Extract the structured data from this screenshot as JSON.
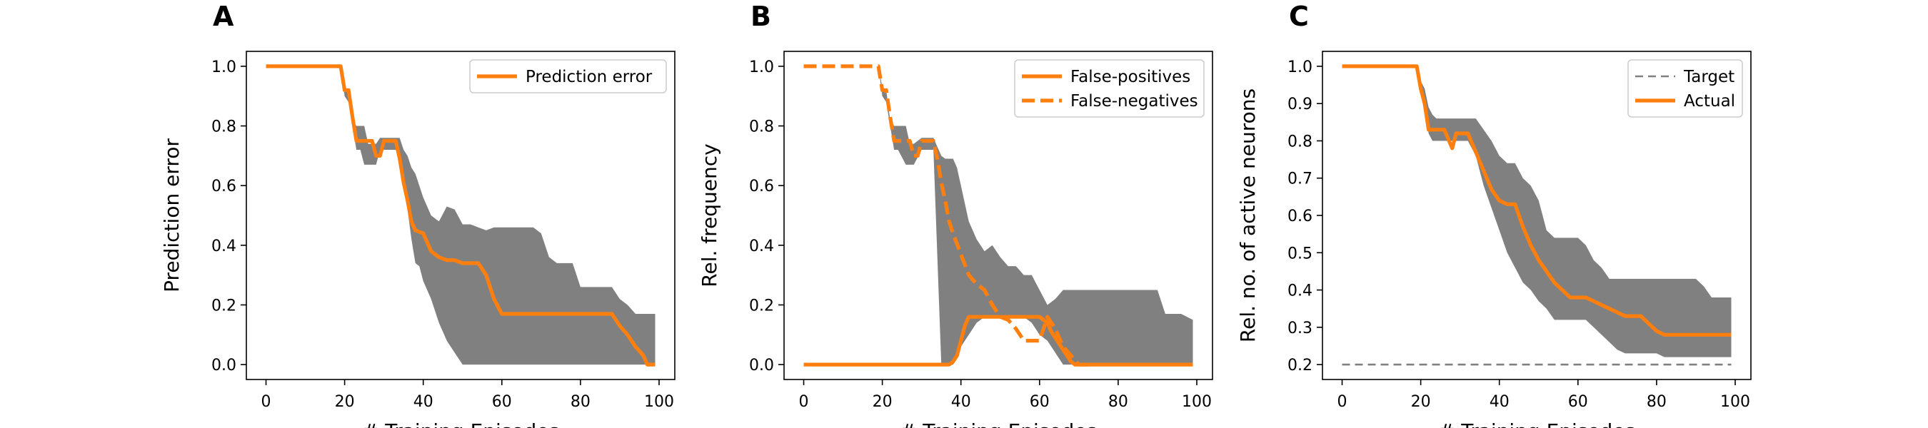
{
  "chart_data": [
    {
      "panel": "A",
      "type": "line",
      "xlabel": "# Training Episodes",
      "ylabel": "Prediction error",
      "xlim": [
        -5,
        104
      ],
      "ylim": [
        -0.05,
        1.05
      ],
      "xticks": [
        0,
        20,
        40,
        60,
        80,
        100
      ],
      "yticks": [
        "0.0",
        "0.2",
        "0.4",
        "0.6",
        "0.8",
        "1.0"
      ],
      "legend_position": "top-right",
      "band_color": "#808080",
      "band": {
        "x": [
          0,
          19,
          20,
          21,
          22,
          23,
          24,
          25,
          26,
          27,
          28,
          29,
          30,
          31,
          33,
          34,
          35,
          36,
          37,
          38,
          39,
          40,
          42,
          44,
          46,
          48,
          50,
          52,
          54,
          56,
          58,
          60,
          62,
          66,
          68,
          70,
          72,
          74,
          76,
          78,
          80,
          82,
          84,
          86,
          88,
          90,
          92,
          94,
          96,
          99
        ],
        "lower": [
          1.0,
          1.0,
          0.9,
          0.88,
          0.8,
          0.72,
          0.72,
          0.67,
          0.67,
          0.67,
          0.67,
          0.72,
          0.72,
          0.72,
          0.72,
          0.68,
          0.62,
          0.52,
          0.42,
          0.34,
          0.33,
          0.28,
          0.22,
          0.14,
          0.08,
          0.04,
          0.0,
          0.0,
          0.0,
          0.0,
          0.0,
          0.0,
          0.0,
          0.0,
          0.0,
          0.0,
          0.0,
          0.0,
          0.0,
          0.0,
          0.0,
          0.0,
          0.0,
          0.0,
          0.0,
          0.0,
          0.0,
          0.0,
          0.0,
          0.0
        ],
        "upper": [
          1.0,
          1.0,
          0.93,
          0.92,
          0.82,
          0.8,
          0.8,
          0.8,
          0.74,
          0.74,
          0.74,
          0.76,
          0.76,
          0.76,
          0.76,
          0.76,
          0.72,
          0.7,
          0.66,
          0.64,
          0.6,
          0.56,
          0.5,
          0.48,
          0.53,
          0.52,
          0.47,
          0.47,
          0.46,
          0.45,
          0.46,
          0.46,
          0.46,
          0.46,
          0.46,
          0.44,
          0.36,
          0.34,
          0.34,
          0.34,
          0.26,
          0.26,
          0.26,
          0.26,
          0.26,
          0.22,
          0.2,
          0.17,
          0.17,
          0.17
        ]
      },
      "series": [
        {
          "name": "Prediction error",
          "color": "#ff7f0e",
          "style": "solid",
          "x": [
            0,
            19,
            20,
            21,
            22,
            23,
            24,
            25,
            26,
            27,
            28,
            29,
            30,
            31,
            33,
            34,
            35,
            36,
            37,
            38,
            40,
            42,
            44,
            46,
            48,
            50,
            52,
            54,
            56,
            58,
            60,
            62,
            66,
            70,
            74,
            80,
            84,
            88,
            90,
            92,
            94,
            96,
            97,
            98,
            99
          ],
          "y": [
            1.0,
            1.0,
            0.92,
            0.92,
            0.83,
            0.75,
            0.75,
            0.75,
            0.75,
            0.75,
            0.7,
            0.7,
            0.75,
            0.75,
            0.75,
            0.69,
            0.61,
            0.55,
            0.48,
            0.45,
            0.44,
            0.38,
            0.36,
            0.35,
            0.35,
            0.34,
            0.34,
            0.34,
            0.3,
            0.22,
            0.17,
            0.17,
            0.17,
            0.17,
            0.17,
            0.17,
            0.17,
            0.17,
            0.13,
            0.1,
            0.06,
            0.03,
            0.0,
            0.0,
            0.0
          ]
        }
      ]
    },
    {
      "panel": "B",
      "type": "line",
      "xlabel": "# Training Episodes",
      "ylabel": "Rel. frequency",
      "xlim": [
        -5,
        104
      ],
      "ylim": [
        -0.05,
        1.05
      ],
      "xticks": [
        0,
        20,
        40,
        60,
        80,
        100
      ],
      "yticks": [
        "0.0",
        "0.2",
        "0.4",
        "0.6",
        "0.8",
        "1.0"
      ],
      "legend_position": "top-right",
      "band_color": "#808080",
      "band": {
        "x": [
          19,
          20,
          21,
          22,
          23,
          24,
          26,
          27,
          28,
          30,
          31,
          33,
          35,
          36,
          37,
          38,
          39,
          40,
          42,
          44,
          46,
          48,
          50,
          52,
          54,
          56,
          58,
          60,
          62,
          64,
          66,
          68,
          70,
          72,
          74,
          76,
          78,
          80,
          82,
          84,
          86,
          88,
          90,
          92,
          94,
          96,
          99
        ],
        "lower": [
          1.0,
          0.9,
          0.88,
          0.8,
          0.72,
          0.72,
          0.67,
          0.67,
          0.67,
          0.72,
          0.72,
          0.72,
          0.0,
          0.0,
          0.0,
          0.0,
          0.02,
          0.06,
          0.1,
          0.14,
          0.16,
          0.16,
          0.16,
          0.16,
          0.16,
          0.16,
          0.14,
          0.1,
          0.08,
          0.04,
          0.0,
          0.0,
          0.0,
          0.0,
          0.0,
          0.0,
          0.0,
          0.0,
          0.0,
          0.0,
          0.0,
          0.0,
          0.0,
          0.0,
          0.0,
          0.0,
          0.0
        ],
        "upper": [
          1.0,
          0.93,
          0.92,
          0.82,
          0.8,
          0.8,
          0.8,
          0.74,
          0.74,
          0.76,
          0.76,
          0.76,
          0.7,
          0.69,
          0.69,
          0.69,
          0.66,
          0.6,
          0.48,
          0.42,
          0.38,
          0.4,
          0.36,
          0.33,
          0.33,
          0.3,
          0.3,
          0.25,
          0.2,
          0.22,
          0.25,
          0.25,
          0.25,
          0.25,
          0.25,
          0.25,
          0.25,
          0.25,
          0.25,
          0.25,
          0.25,
          0.25,
          0.25,
          0.17,
          0.17,
          0.17,
          0.15
        ]
      },
      "series": [
        {
          "name": "False-positives",
          "color": "#ff7f0e",
          "style": "solid",
          "x": [
            0,
            37,
            38,
            39,
            40,
            41,
            42,
            44,
            46,
            48,
            50,
            52,
            54,
            56,
            58,
            60,
            62,
            63,
            64,
            65,
            66,
            67,
            68,
            69,
            70,
            75,
            80,
            90,
            99
          ],
          "y": [
            0.0,
            0.0,
            0.01,
            0.03,
            0.08,
            0.13,
            0.16,
            0.16,
            0.16,
            0.16,
            0.16,
            0.16,
            0.16,
            0.16,
            0.16,
            0.16,
            0.14,
            0.11,
            0.09,
            0.07,
            0.05,
            0.03,
            0.01,
            0.0,
            0.0,
            0.0,
            0.0,
            0.0,
            0.0
          ]
        },
        {
          "name": "False-negatives",
          "color": "#ff7f0e",
          "style": "dashed",
          "x": [
            0,
            19,
            20,
            21,
            22,
            23,
            24,
            25,
            26,
            27,
            28,
            29,
            30,
            31,
            33,
            34,
            35,
            36,
            37,
            38,
            40,
            42,
            44,
            46,
            48,
            50,
            52,
            54,
            56,
            58,
            60,
            62,
            64,
            66,
            68,
            70,
            72
          ],
          "y": [
            1.0,
            1.0,
            0.92,
            0.92,
            0.83,
            0.75,
            0.75,
            0.75,
            0.75,
            0.75,
            0.7,
            0.7,
            0.75,
            0.75,
            0.75,
            0.69,
            0.61,
            0.55,
            0.48,
            0.44,
            0.37,
            0.3,
            0.27,
            0.25,
            0.2,
            0.16,
            0.15,
            0.12,
            0.08,
            0.08,
            0.08,
            0.16,
            0.12,
            0.06,
            0.03,
            0.0,
            0.0
          ]
        }
      ]
    },
    {
      "panel": "C",
      "type": "line",
      "xlabel": "# Training Episodes",
      "ylabel": "Rel. no. of active neurons",
      "xlim": [
        -5,
        104
      ],
      "ylim": [
        0.16,
        1.04
      ],
      "xticks": [
        0,
        20,
        40,
        60,
        80,
        100
      ],
      "yticks": [
        "0.2",
        "0.3",
        "0.4",
        "0.5",
        "0.6",
        "0.7",
        "0.8",
        "0.9",
        "1.0"
      ],
      "legend_position": "top-right",
      "band_color": "#808080",
      "band": {
        "x": [
          0,
          19,
          20,
          21,
          22,
          23,
          24,
          26,
          28,
          29,
          30,
          32,
          34,
          36,
          38,
          40,
          42,
          44,
          46,
          48,
          50,
          52,
          54,
          56,
          58,
          60,
          62,
          64,
          66,
          68,
          70,
          72,
          74,
          76,
          78,
          80,
          82,
          84,
          86,
          88,
          90,
          92,
          94,
          96,
          99
        ],
        "lower": [
          1.0,
          1.0,
          0.94,
          0.9,
          0.82,
          0.8,
          0.8,
          0.8,
          0.8,
          0.8,
          0.8,
          0.8,
          0.76,
          0.68,
          0.62,
          0.56,
          0.5,
          0.46,
          0.42,
          0.4,
          0.37,
          0.35,
          0.32,
          0.32,
          0.32,
          0.32,
          0.32,
          0.3,
          0.28,
          0.26,
          0.24,
          0.23,
          0.23,
          0.23,
          0.23,
          0.23,
          0.22,
          0.22,
          0.22,
          0.22,
          0.22,
          0.22,
          0.22,
          0.22,
          0.22
        ],
        "upper": [
          1.0,
          1.0,
          0.96,
          0.94,
          0.89,
          0.87,
          0.86,
          0.86,
          0.86,
          0.86,
          0.86,
          0.86,
          0.86,
          0.83,
          0.8,
          0.76,
          0.74,
          0.74,
          0.7,
          0.68,
          0.64,
          0.56,
          0.54,
          0.54,
          0.54,
          0.54,
          0.52,
          0.48,
          0.46,
          0.43,
          0.43,
          0.43,
          0.43,
          0.43,
          0.43,
          0.43,
          0.43,
          0.43,
          0.43,
          0.43,
          0.43,
          0.41,
          0.38,
          0.38,
          0.38
        ]
      },
      "series": [
        {
          "name": "Target",
          "color": "#808080",
          "style": "dashed",
          "x": [
            0,
            99
          ],
          "y": [
            0.2,
            0.2
          ]
        },
        {
          "name": "Actual",
          "color": "#ff7f0e",
          "style": "solid",
          "x": [
            0,
            19,
            20,
            21,
            22,
            23,
            24,
            26,
            28,
            29,
            30,
            32,
            34,
            36,
            38,
            40,
            42,
            44,
            46,
            48,
            50,
            52,
            54,
            56,
            58,
            60,
            62,
            64,
            66,
            68,
            70,
            72,
            74,
            76,
            78,
            80,
            82,
            84,
            86,
            88,
            90,
            92,
            94,
            96,
            99
          ],
          "y": [
            1.0,
            1.0,
            0.94,
            0.9,
            0.83,
            0.83,
            0.83,
            0.83,
            0.78,
            0.82,
            0.82,
            0.82,
            0.77,
            0.72,
            0.67,
            0.64,
            0.63,
            0.63,
            0.57,
            0.52,
            0.48,
            0.45,
            0.42,
            0.4,
            0.38,
            0.38,
            0.38,
            0.37,
            0.36,
            0.35,
            0.34,
            0.33,
            0.33,
            0.33,
            0.31,
            0.29,
            0.28,
            0.28,
            0.28,
            0.28,
            0.28,
            0.28,
            0.28,
            0.28,
            0.28
          ]
        }
      ]
    }
  ]
}
